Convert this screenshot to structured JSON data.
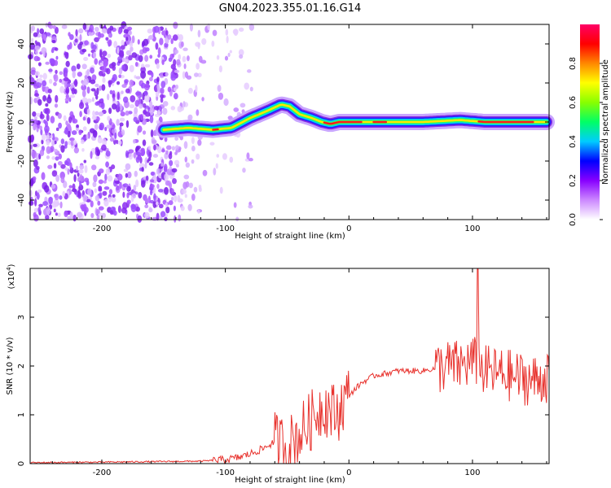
{
  "title": "GN04.2023.355.01.16.G14",
  "chart_data": [
    {
      "type": "heatmap",
      "name": "spectrogram",
      "xlabel": "Height of straight line (km)",
      "ylabel": "Frequency (Hz)",
      "xlim": [
        -258,
        162
      ],
      "ylim": [
        -50,
        50
      ],
      "xticks": [
        -200,
        -100,
        0,
        100
      ],
      "yticks": [
        -40,
        -20,
        0,
        20,
        40
      ],
      "xtick_labels": [
        "-200",
        "-100",
        "0",
        "100"
      ],
      "ytick_labels": [
        "-40",
        "-20",
        "0",
        "20",
        "40"
      ],
      "ridge": {
        "x": [
          -150,
          -130,
          -110,
          -95,
          -80,
          -65,
          -55,
          -48,
          -40,
          -30,
          -22,
          -15,
          -8,
          0,
          20,
          60,
          90,
          110,
          130,
          160
        ],
        "freq": [
          -4,
          -3,
          -4,
          -3,
          2,
          6,
          9,
          8,
          4,
          2,
          0,
          -1,
          0,
          0,
          0,
          0,
          1,
          0,
          0,
          0
        ]
      },
      "colorbar": {
        "label": "Normalized spectral amplitude",
        "range": [
          0.0,
          1.0
        ],
        "ticks": [
          0.0,
          0.2,
          0.4,
          0.6,
          0.8
        ],
        "tick_labels": [
          "0.0",
          "0.2",
          "0.4",
          "0.6",
          "0.8"
        ],
        "colors": [
          "#ffffff",
          "#cc88ff",
          "#8800ff",
          "#0000ff",
          "#00ccff",
          "#00ff66",
          "#88ff00",
          "#ffff00",
          "#ff8800",
          "#ff0000",
          "#ff0066"
        ]
      }
    },
    {
      "type": "line",
      "name": "snr",
      "xlabel": "Height of straight line (km)",
      "ylabel": "SNR (10 * v/v)",
      "scale_label": "(x10",
      "scale_exponent": "4",
      "scale_close": ")",
      "xlim": [
        -258,
        162
      ],
      "ylim": [
        0,
        4
      ],
      "xticks": [
        -200,
        -100,
        0,
        100
      ],
      "yticks": [
        0,
        1,
        2,
        3
      ],
      "xtick_labels": [
        "-200",
        "-100",
        "0",
        "100"
      ],
      "ytick_labels": [
        "0",
        "1",
        "2",
        "3"
      ],
      "color": "#e8322d",
      "envelope": {
        "x": [
          -258,
          -200,
          -120,
          -100,
          -90,
          -80,
          -70,
          -60,
          -50,
          -40,
          -30,
          -25,
          -20,
          -15,
          -10,
          -5,
          0,
          10,
          20,
          30,
          40,
          50,
          60,
          70,
          80,
          90,
          100,
          110,
          120,
          130,
          140,
          150,
          162
        ],
        "y": [
          0.02,
          0.03,
          0.05,
          0.08,
          0.12,
          0.2,
          0.3,
          0.45,
          0.35,
          0.6,
          0.9,
          1.1,
          1.2,
          1.1,
          1.0,
          1.25,
          1.4,
          1.65,
          1.8,
          1.85,
          1.9,
          1.9,
          1.9,
          1.95,
          2.0,
          2.0,
          2.1,
          1.9,
          1.85,
          1.8,
          1.75,
          1.7,
          1.8
        ]
      },
      "peak": {
        "x": 104,
        "y": 4.0
      }
    }
  ]
}
